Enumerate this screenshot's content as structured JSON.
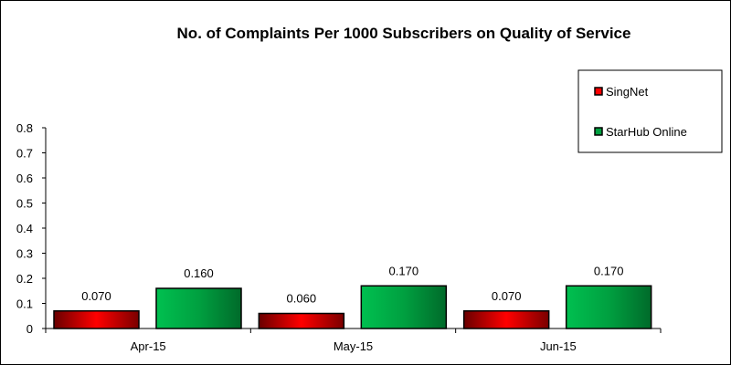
{
  "chart_data": {
    "type": "bar",
    "title": "No. of Complaints Per 1000 Subscribers on Quality of Service",
    "categories": [
      "Apr-15",
      "May-15",
      "Jun-15"
    ],
    "series": [
      {
        "name": "SingNet",
        "values": [
          0.07,
          0.06,
          0.07
        ],
        "labels": [
          "0.070",
          "0.060",
          "0.070"
        ],
        "color": "#ff0000"
      },
      {
        "name": "StarHub Online",
        "values": [
          0.16,
          0.17,
          0.17
        ],
        "labels": [
          "0.160",
          "0.170",
          "0.170"
        ],
        "color": "#00b050"
      }
    ],
    "ylim": [
      0,
      0.8
    ],
    "yticks": [
      "0",
      "0.1",
      "0.2",
      "0.3",
      "0.4",
      "0.5",
      "0.6",
      "0.7",
      "0.8"
    ],
    "grid": false,
    "legend": "top-right"
  }
}
